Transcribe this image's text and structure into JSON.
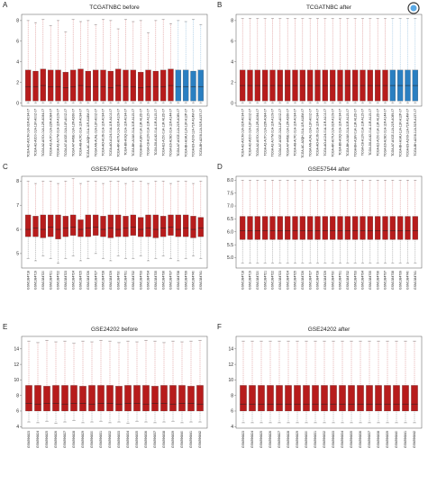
{
  "chart_data": [
    {
      "type": "box",
      "panel": "A",
      "title": "TCGATNBC before",
      "categories": [
        "TCGA-A2-A0CM-01A-31R-A034-07",
        "TCGA-A2-A0D0-01A-11R-A00Z-07",
        "TCGA-A2-A0SX-01A-12R-A084-07",
        "TCGA-A2-A0T0-01A-22R-A084-07",
        "TCGA-A2-A0YM-01A-11R-A109-07",
        "TCGA-A7-A0CE-01A-11R-A00Z-07",
        "TCGA-A7-A4SE-01A-12R-A266-07",
        "TCGA-A8-A07C-01A-11R-A034-07",
        "TCGA-AC-A2QH-01A-11R-A18M-07",
        "TCGA-AN-A0AL-01A-11R-A00Z-07",
        "TCGA-AO-A0J6-01A-11R-A034-07",
        "TCGA-AO-A124-01A-11R-A10J-07",
        "TCGA-AR-A0TU-01A-31R-A109-07",
        "TCGA-B6-A0IQ-01A-11R-A034-07",
        "TCGA-BH-A0AV-01A-31R-A115-07",
        "TCGA-BH-A18V-01A-11R-A12D-07",
        "TCGA-C8-A12V-01A-11R-A115-07",
        "TCGA-D8-A142-01A-11R-A115-07",
        "TCGA-E2-A150-01A-11R-A12D-07",
        "TCGA-E9-A1ND-01A-11R-A144-07",
        "TCGA-A7-A0CE-11A-21R-A089-07",
        "TCGA-BH-A0AU-11A-11R-A12P-07",
        "TCGA-E9-A1N9-11A-71R-A14M-07",
        "TCGA-BH-A208-11A-51R-A157-07"
      ],
      "min": [
        0,
        0,
        0,
        0,
        0,
        0,
        0,
        0,
        0,
        0,
        0,
        0,
        0,
        0,
        0,
        0,
        0,
        0,
        0,
        0,
        0,
        0,
        0,
        0
      ],
      "q1": [
        0.2,
        0.2,
        0.2,
        0.2,
        0.2,
        0.2,
        0.2,
        0.2,
        0.2,
        0.2,
        0.2,
        0.2,
        0.2,
        0.2,
        0.2,
        0.2,
        0.2,
        0.2,
        0.2,
        0.2,
        0.2,
        0.2,
        0.2,
        0.2
      ],
      "median": [
        1.6,
        1.6,
        1.7,
        1.6,
        1.6,
        1.5,
        1.6,
        1.7,
        1.6,
        1.6,
        1.6,
        1.5,
        1.7,
        1.6,
        1.6,
        1.5,
        1.6,
        1.6,
        1.6,
        1.7,
        1.6,
        1.6,
        1.6,
        1.6
      ],
      "q3": [
        3.2,
        3.1,
        3.3,
        3.2,
        3.2,
        3.0,
        3.2,
        3.3,
        3.1,
        3.2,
        3.2,
        3.1,
        3.3,
        3.2,
        3.2,
        3.0,
        3.2,
        3.1,
        3.2,
        3.3,
        3.2,
        3.2,
        3.1,
        3.2
      ],
      "max": [
        8.0,
        7.8,
        8.1,
        7.5,
        8.0,
        6.9,
        8.1,
        7.9,
        8.0,
        7.6,
        8.1,
        8.0,
        7.2,
        8.1,
        7.9,
        8.0,
        6.8,
        8.0,
        8.1,
        7.7,
        8.0,
        7.9,
        8.1,
        7.6
      ],
      "colors": [
        "#b71c1c",
        "#b71c1c",
        "#b71c1c",
        "#b71c1c",
        "#b71c1c",
        "#b71c1c",
        "#b71c1c",
        "#b71c1c",
        "#b71c1c",
        "#b71c1c",
        "#b71c1c",
        "#b71c1c",
        "#b71c1c",
        "#b71c1c",
        "#b71c1c",
        "#b71c1c",
        "#b71c1c",
        "#b71c1c",
        "#b71c1c",
        "#b71c1c",
        "#2a7fc1",
        "#2a7fc1",
        "#2a7fc1",
        "#2a7fc1"
      ],
      "ylim": [
        -0.3,
        8.6
      ],
      "yticks": [
        0,
        2,
        4,
        6,
        8
      ]
    },
    {
      "type": "box",
      "panel": "B",
      "title": "TCGATNBC after",
      "categories": [
        "TCGA-A2-A0CM-01A-31R-A034-07",
        "TCGA-A2-A0D0-01A-11R-A00Z-07",
        "TCGA-A2-A0SX-01A-12R-A084-07",
        "TCGA-A2-A0T0-01A-22R-A084-07",
        "TCGA-A2-A0YM-01A-11R-A109-07",
        "TCGA-A7-A0CE-01A-11R-A00Z-07",
        "TCGA-A7-A4SE-01A-12R-A266-07",
        "TCGA-A8-A07C-01A-11R-A034-07",
        "TCGA-AC-A2QH-01A-11R-A18M-07",
        "TCGA-AN-A0AL-01A-11R-A00Z-07",
        "TCGA-AO-A0J6-01A-11R-A034-07",
        "TCGA-AO-A124-01A-11R-A10J-07",
        "TCGA-AR-A0TU-01A-31R-A109-07",
        "TCGA-B6-A0IQ-01A-11R-A034-07",
        "TCGA-BH-A0AV-01A-31R-A115-07",
        "TCGA-BH-A18V-01A-11R-A12D-07",
        "TCGA-C8-A12V-01A-11R-A115-07",
        "TCGA-D8-A142-01A-11R-A115-07",
        "TCGA-E2-A150-01A-11R-A12D-07",
        "TCGA-E9-A1ND-01A-11R-A144-07",
        "TCGA-A7-A0CE-11A-21R-A089-07",
        "TCGA-BH-A0AU-11A-11R-A12P-07",
        "TCGA-E9-A1N9-11A-71R-A14M-07",
        "TCGA-BH-A208-11A-51R-A157-07"
      ],
      "min": [
        0,
        0,
        0,
        0,
        0,
        0,
        0,
        0,
        0,
        0,
        0,
        0,
        0,
        0,
        0,
        0,
        0,
        0,
        0,
        0,
        0,
        0,
        0,
        0
      ],
      "q1": [
        0.2,
        0.2,
        0.2,
        0.2,
        0.2,
        0.2,
        0.2,
        0.2,
        0.2,
        0.2,
        0.2,
        0.2,
        0.2,
        0.2,
        0.2,
        0.2,
        0.2,
        0.2,
        0.2,
        0.2,
        0.2,
        0.2,
        0.2,
        0.2
      ],
      "median": [
        1.7,
        1.7,
        1.7,
        1.7,
        1.7,
        1.7,
        1.7,
        1.7,
        1.7,
        1.7,
        1.7,
        1.7,
        1.7,
        1.7,
        1.7,
        1.7,
        1.7,
        1.7,
        1.7,
        1.7,
        1.7,
        1.7,
        1.7,
        1.7
      ],
      "q3": [
        3.2,
        3.2,
        3.2,
        3.2,
        3.2,
        3.2,
        3.2,
        3.2,
        3.2,
        3.2,
        3.2,
        3.2,
        3.2,
        3.2,
        3.2,
        3.2,
        3.2,
        3.2,
        3.2,
        3.2,
        3.2,
        3.2,
        3.2,
        3.2
      ],
      "max": [
        8.2,
        8.2,
        8.2,
        8.2,
        8.2,
        8.2,
        8.2,
        8.2,
        8.2,
        8.2,
        8.2,
        8.2,
        8.2,
        8.2,
        8.2,
        8.2,
        8.2,
        8.2,
        8.2,
        8.2,
        8.2,
        8.2,
        8.2,
        8.2
      ],
      "colors": [
        "#b71c1c",
        "#b71c1c",
        "#b71c1c",
        "#b71c1c",
        "#b71c1c",
        "#b71c1c",
        "#b71c1c",
        "#b71c1c",
        "#b71c1c",
        "#b71c1c",
        "#b71c1c",
        "#b71c1c",
        "#b71c1c",
        "#b71c1c",
        "#b71c1c",
        "#b71c1c",
        "#b71c1c",
        "#b71c1c",
        "#b71c1c",
        "#b71c1c",
        "#2a7fc1",
        "#2a7fc1",
        "#2a7fc1",
        "#2a7fc1"
      ],
      "ylim": [
        -0.3,
        8.6
      ],
      "yticks": [
        0,
        2,
        4,
        6,
        8
      ]
    },
    {
      "type": "box",
      "panel": "C",
      "title": "GSE57544 before",
      "color": "#b71c1c",
      "categories": [
        "GSM1384718",
        "GSM1384719",
        "GSM1384720",
        "GSM1384721",
        "GSM1384722",
        "GSM1384723",
        "GSM1384724",
        "GSM1384725",
        "GSM1384726",
        "GSM1384727",
        "GSM1384728",
        "GSM1384729",
        "GSM1384730",
        "GSM1384731",
        "GSM1384732",
        "GSM1384733",
        "GSM1384734",
        "GSM1384735",
        "GSM1384736",
        "GSM1384737",
        "GSM1384738",
        "GSM1384739",
        "GSM1384740",
        "GSM1384741"
      ],
      "min": [
        4.8,
        4.7,
        4.9,
        4.8,
        4.6,
        4.8,
        4.9,
        4.7,
        4.8,
        5.0,
        4.8,
        4.7,
        4.9,
        4.8,
        4.8,
        4.9,
        4.7,
        4.8,
        4.9,
        4.8,
        4.7,
        4.8,
        4.9,
        4.8
      ],
      "q1": [
        5.7,
        5.7,
        5.65,
        5.7,
        5.6,
        5.7,
        5.75,
        5.7,
        5.7,
        5.75,
        5.7,
        5.65,
        5.7,
        5.7,
        5.75,
        5.7,
        5.7,
        5.65,
        5.7,
        5.75,
        5.7,
        5.7,
        5.65,
        5.7
      ],
      "median": [
        6.0,
        6.05,
        6.0,
        6.1,
        6.0,
        6.05,
        6.1,
        6.0,
        6.05,
        6.1,
        6.0,
        6.05,
        6.0,
        6.05,
        6.1,
        6.0,
        6.05,
        6.0,
        6.05,
        6.1,
        6.0,
        6.05,
        6.0,
        6.05
      ],
      "q3": [
        6.6,
        6.55,
        6.6,
        6.6,
        6.6,
        6.55,
        6.6,
        6.4,
        6.6,
        6.6,
        6.55,
        6.6,
        6.6,
        6.55,
        6.6,
        6.5,
        6.6,
        6.6,
        6.55,
        6.6,
        6.6,
        6.6,
        6.55,
        6.5
      ],
      "max": [
        8.0,
        7.9,
        8.0,
        8.0,
        7.9,
        8.0,
        8.1,
        7.9,
        8.0,
        8.0,
        7.9,
        8.0,
        8.0,
        7.9,
        8.0,
        8.0,
        7.9,
        8.0,
        8.0,
        7.9,
        8.0,
        8.0,
        7.9,
        8.0
      ],
      "ylim": [
        4.4,
        8.2
      ],
      "yticks": [
        5,
        6,
        7,
        8
      ]
    },
    {
      "type": "box",
      "panel": "D",
      "title": "GSE57544 after",
      "color": "#b71c1c",
      "categories": [
        "GSM1384718",
        "GSM1384719",
        "GSM1384720",
        "GSM1384721",
        "GSM1384722",
        "GSM1384723",
        "GSM1384724",
        "GSM1384725",
        "GSM1384726",
        "GSM1384727",
        "GSM1384728",
        "GSM1384729",
        "GSM1384730",
        "GSM1384731",
        "GSM1384732",
        "GSM1384733",
        "GSM1384734",
        "GSM1384735",
        "GSM1384736",
        "GSM1384737",
        "GSM1384738",
        "GSM1384739",
        "GSM1384740",
        "GSM1384741"
      ],
      "min": [
        4.8,
        4.8,
        4.8,
        4.8,
        4.8,
        4.8,
        4.8,
        4.8,
        4.8,
        4.8,
        4.8,
        4.8,
        4.8,
        4.8,
        4.8,
        4.8,
        4.8,
        4.8,
        4.8,
        4.8,
        4.8,
        4.8,
        4.8,
        4.8
      ],
      "q1": [
        5.7,
        5.7,
        5.7,
        5.7,
        5.7,
        5.7,
        5.7,
        5.7,
        5.7,
        5.7,
        5.7,
        5.7,
        5.7,
        5.7,
        5.7,
        5.7,
        5.7,
        5.7,
        5.7,
        5.7,
        5.7,
        5.7,
        5.7,
        5.7
      ],
      "median": [
        6.05,
        6.05,
        6.05,
        6.05,
        6.05,
        6.05,
        6.05,
        6.05,
        6.05,
        6.05,
        6.05,
        6.05,
        6.05,
        6.05,
        6.05,
        6.05,
        6.05,
        6.05,
        6.05,
        6.05,
        6.05,
        6.05,
        6.05,
        6.05
      ],
      "q3": [
        6.6,
        6.6,
        6.6,
        6.6,
        6.6,
        6.6,
        6.6,
        6.6,
        6.6,
        6.6,
        6.6,
        6.6,
        6.6,
        6.6,
        6.6,
        6.6,
        6.6,
        6.6,
        6.6,
        6.6,
        6.6,
        6.6,
        6.6,
        6.6
      ],
      "max": [
        8.0,
        8.0,
        8.0,
        8.0,
        8.0,
        8.0,
        8.0,
        8.0,
        8.0,
        8.0,
        8.0,
        8.0,
        8.0,
        8.0,
        8.0,
        8.0,
        8.0,
        8.0,
        8.0,
        8.0,
        8.0,
        8.0,
        8.0,
        8.0
      ],
      "ylim": [
        4.6,
        8.15
      ],
      "yticks": [
        {
          "value": 5,
          "label": "5.0"
        },
        5.5,
        {
          "value": 6,
          "label": "6.0"
        },
        6.5,
        {
          "value": 7,
          "label": "7.0"
        },
        7.5,
        {
          "value": 8,
          "label": "8.0"
        }
      ]
    },
    {
      "type": "box",
      "panel": "E",
      "title": "GSE24202 before",
      "color": "#b71c1c",
      "categories": [
        "GSM596823",
        "GSM596824",
        "GSM596825",
        "GSM596826",
        "GSM596827",
        "GSM596828",
        "GSM596829",
        "GSM596830",
        "GSM596831",
        "GSM596832",
        "GSM596833",
        "GSM596834",
        "GSM596835",
        "GSM596836",
        "GSM596837",
        "GSM596838",
        "GSM596839",
        "GSM596840",
        "GSM596841",
        "GSM596842"
      ],
      "min": [
        4.6,
        4.5,
        4.7,
        4.4,
        4.6,
        4.8,
        4.5,
        4.6,
        4.7,
        4.5,
        4.6,
        4.4,
        4.7,
        4.6,
        4.5,
        4.6,
        4.7,
        4.5,
        4.6,
        4.6
      ],
      "q1": [
        6.0,
        6.0,
        6.0,
        6.0,
        6.0,
        6.0,
        6.0,
        6.0,
        6.0,
        6.0,
        6.0,
        6.0,
        6.0,
        6.0,
        6.0,
        6.0,
        6.0,
        6.0,
        6.0,
        6.0
      ],
      "median": [
        7.0,
        6.9,
        7.0,
        7.0,
        6.9,
        7.0,
        7.0,
        6.9,
        7.0,
        7.0,
        6.9,
        7.0,
        7.0,
        6.9,
        7.0,
        7.0,
        6.9,
        7.0,
        7.0,
        6.9
      ],
      "q3": [
        9.3,
        9.3,
        9.2,
        9.3,
        9.3,
        9.3,
        9.2,
        9.3,
        9.3,
        9.3,
        9.2,
        9.3,
        9.3,
        9.3,
        9.2,
        9.3,
        9.3,
        9.3,
        9.2,
        9.3
      ],
      "max": [
        15.0,
        14.8,
        15.1,
        14.9,
        15.0,
        14.7,
        15.0,
        14.9,
        15.1,
        15.0,
        14.8,
        15.0,
        14.9,
        15.1,
        15.0,
        14.8,
        15.0,
        14.9,
        15.0,
        15.1
      ],
      "ylim": [
        3.8,
        15.6
      ],
      "yticks": [
        4,
        6,
        8,
        10,
        12,
        14
      ]
    },
    {
      "type": "box",
      "panel": "F",
      "title": "GSE24202 after",
      "color": "#b71c1c",
      "categories": [
        "GSM596823",
        "GSM596824",
        "GSM596825",
        "GSM596826",
        "GSM596827",
        "GSM596828",
        "GSM596829",
        "GSM596830",
        "GSM596831",
        "GSM596832",
        "GSM596833",
        "GSM596834",
        "GSM596835",
        "GSM596836",
        "GSM596837",
        "GSM596838",
        "GSM596839",
        "GSM596840",
        "GSM596841",
        "GSM596842"
      ],
      "min": [
        4.5,
        4.5,
        4.5,
        4.5,
        4.5,
        4.5,
        4.5,
        4.5,
        4.5,
        4.5,
        4.5,
        4.5,
        4.5,
        4.5,
        4.5,
        4.5,
        4.5,
        4.5,
        4.5,
        4.5
      ],
      "q1": [
        6.0,
        6.0,
        6.0,
        6.0,
        6.0,
        6.0,
        6.0,
        6.0,
        6.0,
        6.0,
        6.0,
        6.0,
        6.0,
        6.0,
        6.0,
        6.0,
        6.0,
        6.0,
        6.0,
        6.0
      ],
      "median": [
        6.9,
        6.9,
        6.9,
        6.9,
        6.9,
        6.9,
        6.9,
        6.9,
        6.9,
        6.9,
        6.9,
        6.9,
        6.9,
        6.9,
        6.9,
        6.9,
        6.9,
        6.9,
        6.9,
        6.9
      ],
      "q3": [
        9.3,
        9.3,
        9.3,
        9.3,
        9.3,
        9.3,
        9.3,
        9.3,
        9.3,
        9.3,
        9.3,
        9.3,
        9.3,
        9.3,
        9.3,
        9.3,
        9.3,
        9.3,
        9.3,
        9.3
      ],
      "max": [
        15.0,
        15.0,
        15.0,
        15.0,
        15.0,
        15.0,
        15.0,
        15.0,
        15.0,
        15.0,
        15.0,
        15.0,
        15.0,
        15.0,
        15.0,
        15.0,
        15.0,
        15.0,
        15.0,
        15.0
      ],
      "ylim": [
        3.8,
        15.6
      ],
      "yticks": [
        4,
        6,
        8,
        10,
        12,
        14
      ]
    }
  ]
}
